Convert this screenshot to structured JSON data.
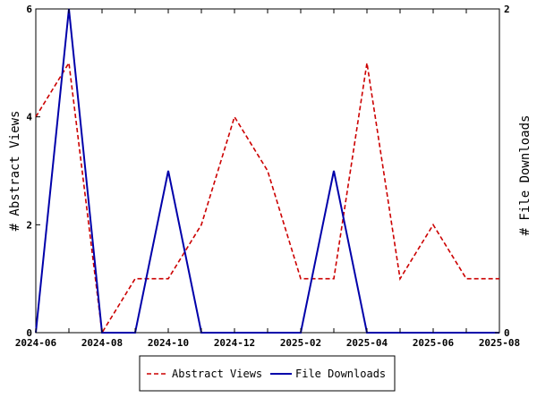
{
  "chart_data": {
    "type": "line",
    "x": [
      "2024-06",
      "2024-07",
      "2024-08",
      "2024-09",
      "2024-10",
      "2024-11",
      "2024-12",
      "2025-01",
      "2025-02",
      "2025-03",
      "2025-04",
      "2025-05",
      "2025-06",
      "2025-07",
      "2025-08"
    ],
    "x_tick_labels": [
      "2024-06",
      "2024-08",
      "2024-10",
      "2024-12",
      "2025-02",
      "2025-04",
      "2025-06",
      "2025-08"
    ],
    "series": [
      {
        "name": "Abstract Views",
        "axis": "left",
        "color": "#cc0000",
        "dash": "dashed",
        "values": [
          4,
          5,
          0,
          1,
          1,
          2,
          4,
          3,
          1,
          1,
          5,
          1,
          2,
          1,
          1
        ]
      },
      {
        "name": "File Downloads",
        "axis": "right",
        "color": "#0000aa",
        "dash": "solid",
        "values": [
          0,
          2,
          0,
          0,
          1,
          0,
          0,
          0,
          0,
          1,
          0,
          0,
          0,
          0,
          0
        ]
      }
    ],
    "ylabel_left": "# Abstract Views",
    "ylabel_right": "# File Downloads",
    "ylim_left": [
      0,
      6
    ],
    "yticks_left": [
      "0",
      "2",
      "4",
      "6"
    ],
    "ylim_right": [
      0,
      2
    ],
    "yticks_right": [
      "0",
      "2"
    ],
    "grid": false,
    "legend_position": "bottom-center"
  }
}
